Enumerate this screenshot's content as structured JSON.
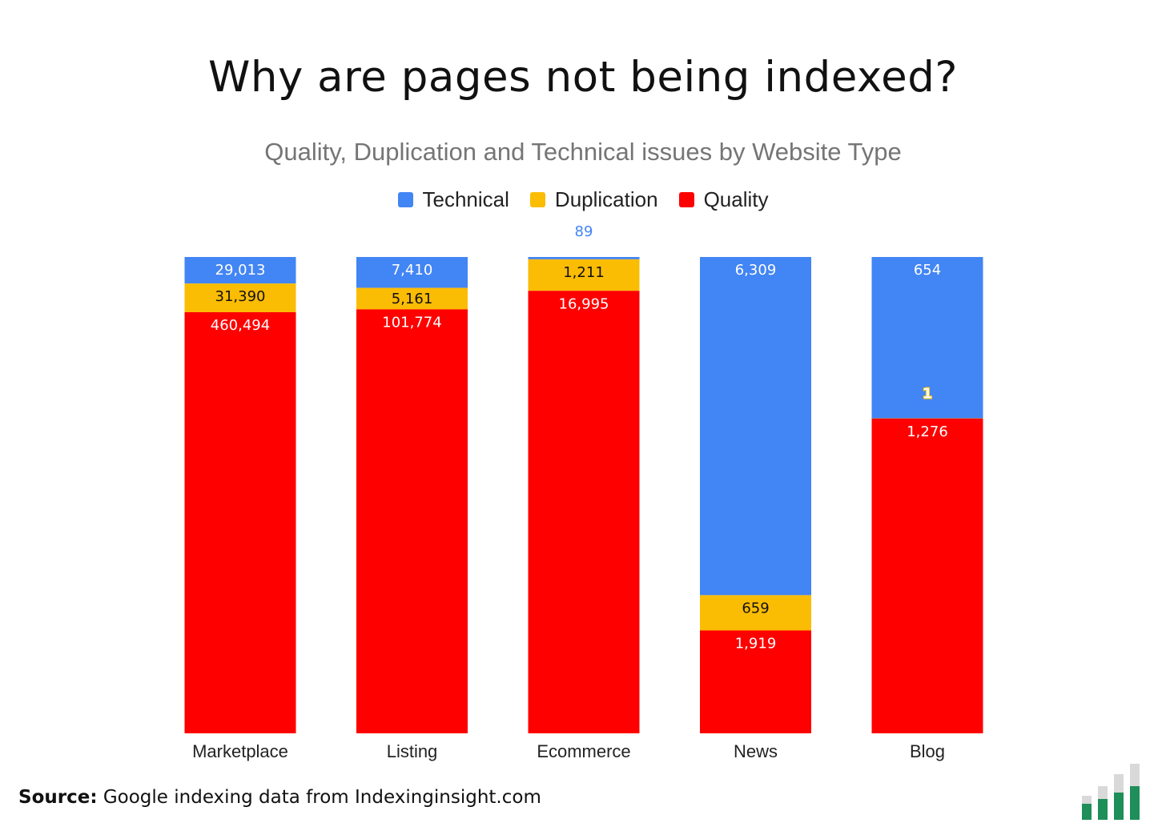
{
  "header": {
    "title": "Why are pages not being indexed?",
    "subtitle": "Quality, Duplication and Technical issues by Website Type"
  },
  "footer": {
    "source_label": "Source:",
    "source_text": "Google indexing data from Indexinginsight.com"
  },
  "colors": {
    "technical": "#4285f4",
    "duplication": "#fbbc04",
    "quality": "#ff0000",
    "logo_green": "#1e8e5a",
    "logo_gray": "#d9d9d9"
  },
  "chart_data": {
    "type": "bar",
    "stacked": "percent",
    "title": "Quality, Duplication and Technical issues by Website Type",
    "legend_position": "top-center",
    "grid": false,
    "categories": [
      "Marketplace",
      "Listing",
      "Ecommerce",
      "News",
      "Blog"
    ],
    "series": [
      {
        "name": "Technical",
        "color": "#4285f4",
        "values": [
          29013,
          7410,
          89,
          6309,
          654
        ]
      },
      {
        "name": "Duplication",
        "color": "#fbbc04",
        "values": [
          31390,
          5161,
          1211,
          659,
          1
        ]
      },
      {
        "name": "Quality",
        "color": "#ff0000",
        "values": [
          460494,
          101774,
          16995,
          1919,
          1276
        ]
      }
    ]
  },
  "logo": {
    "icon": "bar-chart-logo-icon"
  }
}
